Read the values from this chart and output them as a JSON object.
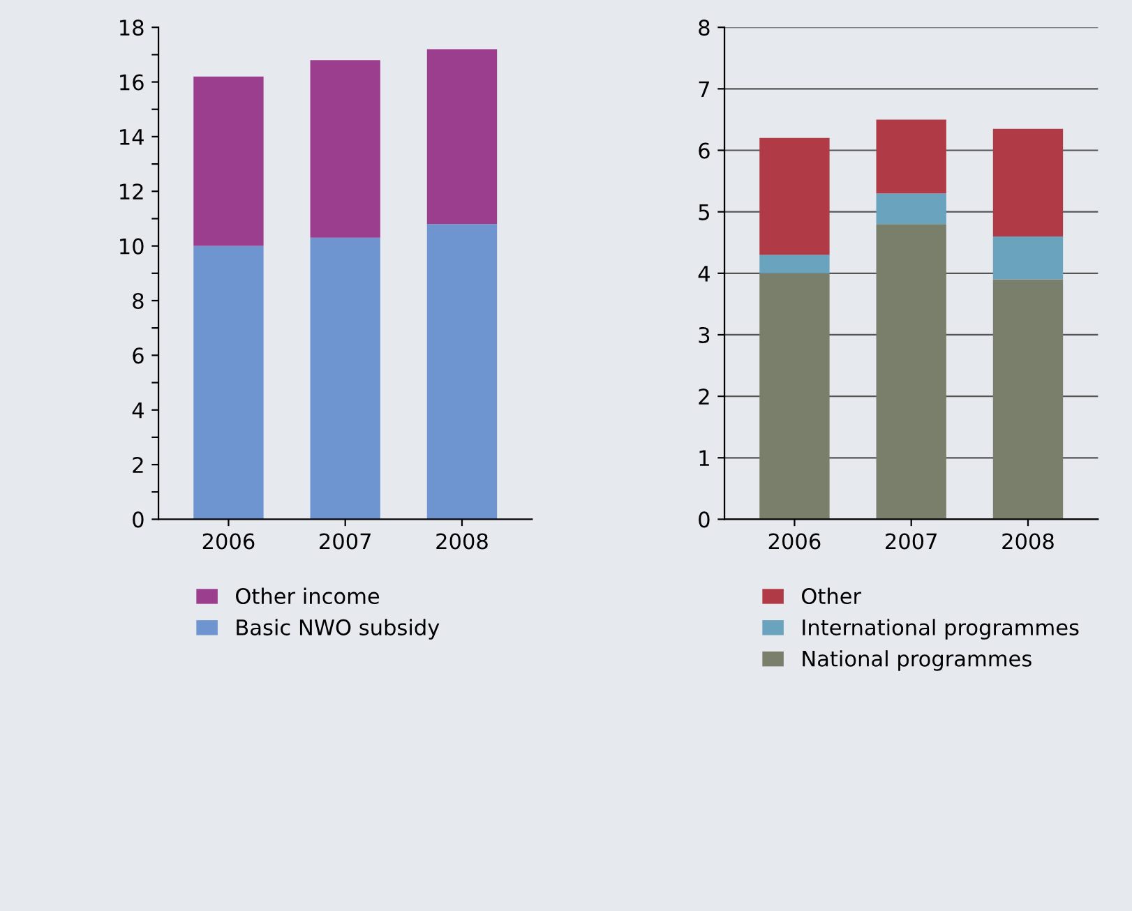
{
  "chart_data": [
    {
      "type": "bar",
      "stacked": true,
      "categories": [
        "2006",
        "2007",
        "2008"
      ],
      "series": [
        {
          "name": "Basic NWO subsidy",
          "color": "#6f95d0",
          "values": [
            10.0,
            10.3,
            10.8
          ]
        },
        {
          "name": "Other income",
          "color": "#9b3e8e",
          "values": [
            6.2,
            6.5,
            6.4
          ]
        }
      ],
      "ylim": [
        0,
        18
      ],
      "yticks": [
        0,
        {
          "value": 1,
          "label": null
        },
        2,
        {
          "value": 3,
          "label": null
        },
        4,
        {
          "value": 5,
          "label": null
        },
        6,
        {
          "value": 7,
          "label": null
        },
        8,
        {
          "value": 9,
          "label": null
        },
        10,
        {
          "value": 11,
          "label": null
        },
        12,
        {
          "value": 13,
          "label": null
        },
        14,
        {
          "value": 15,
          "label": null
        },
        16,
        {
          "value": 17,
          "label": null
        },
        18
      ],
      "grid": false,
      "legend": "bottom"
    },
    {
      "type": "bar",
      "stacked": true,
      "categories": [
        "2006",
        "2007",
        "2008"
      ],
      "series": [
        {
          "name": "National programmes",
          "color": "#7a7f6c",
          "values": [
            4.0,
            4.8,
            3.9
          ]
        },
        {
          "name": "International programmes",
          "color": "#6aa3bd",
          "values": [
            0.3,
            0.5,
            0.7
          ]
        },
        {
          "name": "Other",
          "color": "#b03a45",
          "values": [
            1.9,
            1.2,
            1.75
          ]
        }
      ],
      "ylim": [
        0,
        8
      ],
      "yticks": [
        0,
        1,
        2,
        3,
        4,
        5,
        6,
        7,
        8
      ],
      "grid": "y",
      "legend": "bottom"
    }
  ]
}
